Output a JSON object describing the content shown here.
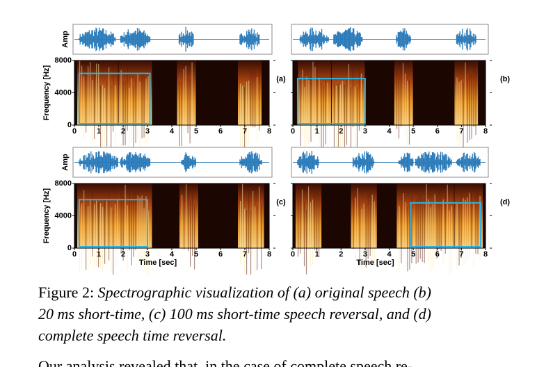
{
  "figure": {
    "panels": [
      {
        "label": "(a)"
      },
      {
        "label": "(b)"
      },
      {
        "label": "(c)"
      },
      {
        "label": "(d)"
      }
    ],
    "amp_label": "Amp",
    "y_label": "Frequency [Hz]",
    "y_ticks": [
      8000,
      4000,
      0
    ],
    "x_ticks": [
      0,
      1,
      2,
      3,
      4,
      5,
      6,
      7,
      8
    ],
    "x_label": "Time [sec]"
  },
  "caption": {
    "label": "Figure 2:",
    "lines": [
      "Spectrographic visualization of (a) original speech (b)",
      "20 ms short-time, (c) 100 ms short-time speech reversal, and (d)",
      "complete speech time reversal."
    ]
  },
  "body_text": "Our analysis revealed that, in the case of complete speech re-"
}
